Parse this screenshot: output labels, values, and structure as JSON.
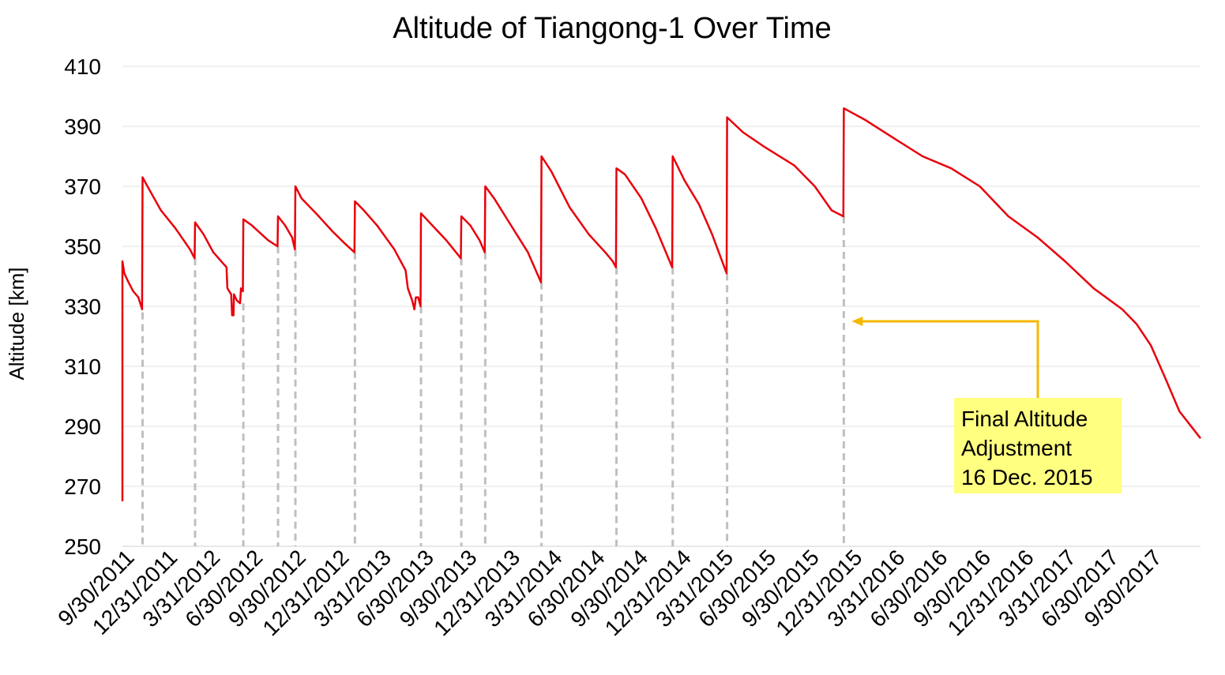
{
  "chart_data": {
    "type": "line",
    "title": "Altitude of Tiangong-1 Over Time",
    "xlabel": "",
    "ylabel": "Altitude [km]",
    "ylim": [
      250,
      410
    ],
    "yticks": [
      250,
      270,
      290,
      310,
      330,
      350,
      370,
      390,
      410
    ],
    "xlim": [
      "2011-09-29",
      "2018-01-15"
    ],
    "xtick_labels": [
      {
        "date": "2011-09-30",
        "label": "9/30/2011"
      },
      {
        "date": "2011-12-31",
        "label": "12/31/2011"
      },
      {
        "date": "2012-03-31",
        "label": "3/31/2012"
      },
      {
        "date": "2012-06-30",
        "label": "6/30/2012"
      },
      {
        "date": "2012-09-30",
        "label": "9/30/2012"
      },
      {
        "date": "2012-12-31",
        "label": "12/31/2012"
      },
      {
        "date": "2013-03-31",
        "label": "3/31/2013"
      },
      {
        "date": "2013-06-30",
        "label": "6/30/2013"
      },
      {
        "date": "2013-09-30",
        "label": "9/30/2013"
      },
      {
        "date": "2013-12-31",
        "label": "12/31/2013"
      },
      {
        "date": "2014-03-31",
        "label": "3/31/2014"
      },
      {
        "date": "2014-06-30",
        "label": "6/30/2014"
      },
      {
        "date": "2014-09-30",
        "label": "9/30/2014"
      },
      {
        "date": "2014-12-31",
        "label": "12/31/2014"
      },
      {
        "date": "2015-03-31",
        "label": "3/31/2015"
      },
      {
        "date": "2015-06-30",
        "label": "6/30/2015"
      },
      {
        "date": "2015-09-30",
        "label": "9/30/2015"
      },
      {
        "date": "2015-12-31",
        "label": "12/31/2015"
      },
      {
        "date": "2016-03-31",
        "label": "3/31/2016"
      },
      {
        "date": "2016-06-30",
        "label": "6/30/2016"
      },
      {
        "date": "2016-09-30",
        "label": "9/30/2016"
      },
      {
        "date": "2016-12-31",
        "label": "12/31/2016"
      },
      {
        "date": "2017-03-31",
        "label": "3/31/2017"
      },
      {
        "date": "2017-06-30",
        "label": "6/30/2017"
      },
      {
        "date": "2017-09-30",
        "label": "9/30/2017"
      }
    ],
    "grid": true,
    "legend": "none",
    "line_color": "#e8000b",
    "boost_line_color": "#bfbfbf",
    "series": [
      {
        "points": [
          [
            "2011-09-29",
            265
          ],
          [
            "2011-09-29",
            345
          ],
          [
            "2011-10-03",
            341
          ],
          [
            "2011-10-12",
            338
          ],
          [
            "2011-10-22",
            335
          ],
          [
            "2011-11-02",
            333
          ],
          [
            "2011-11-10",
            329
          ],
          [
            "2011-11-11",
            373
          ],
          [
            "2011-11-25",
            369
          ],
          [
            "2011-12-20",
            362
          ],
          [
            "2012-01-20",
            356
          ],
          [
            "2012-02-20",
            349
          ],
          [
            "2012-03-01",
            346
          ],
          [
            "2012-03-02",
            358
          ],
          [
            "2012-03-20",
            354
          ],
          [
            "2012-04-10",
            348
          ],
          [
            "2012-05-08",
            343
          ],
          [
            "2012-05-10",
            336
          ],
          [
            "2012-05-18",
            334
          ],
          [
            "2012-05-20",
            327
          ],
          [
            "2012-05-23",
            327
          ],
          [
            "2012-05-24",
            334
          ],
          [
            "2012-05-30",
            332
          ],
          [
            "2012-06-06",
            331
          ],
          [
            "2012-06-08",
            336
          ],
          [
            "2012-06-12",
            335
          ],
          [
            "2012-06-13",
            359
          ],
          [
            "2012-07-01",
            357
          ],
          [
            "2012-08-05",
            352
          ],
          [
            "2012-08-25",
            350
          ],
          [
            "2012-08-26",
            360
          ],
          [
            "2012-09-10",
            357
          ],
          [
            "2012-09-25",
            353
          ],
          [
            "2012-10-01",
            349
          ],
          [
            "2012-10-02",
            370
          ],
          [
            "2012-10-15",
            366
          ],
          [
            "2012-11-15",
            361
          ],
          [
            "2012-12-20",
            355
          ],
          [
            "2013-01-15",
            351
          ],
          [
            "2013-02-05",
            348
          ],
          [
            "2013-02-06",
            365
          ],
          [
            "2013-02-25",
            362
          ],
          [
            "2013-03-25",
            357
          ],
          [
            "2013-05-01",
            349
          ],
          [
            "2013-05-25",
            342
          ],
          [
            "2013-05-30",
            336
          ],
          [
            "2013-06-08",
            332
          ],
          [
            "2013-06-13",
            329
          ],
          [
            "2013-06-16",
            333
          ],
          [
            "2013-06-21",
            333
          ],
          [
            "2013-06-26",
            330
          ],
          [
            "2013-06-27",
            361
          ],
          [
            "2013-07-15",
            358
          ],
          [
            "2013-08-20",
            352
          ],
          [
            "2013-09-20",
            346
          ],
          [
            "2013-09-21",
            360
          ],
          [
            "2013-10-10",
            357
          ],
          [
            "2013-10-30",
            352
          ],
          [
            "2013-11-10",
            348
          ],
          [
            "2013-11-11",
            370
          ],
          [
            "2013-11-30",
            366
          ],
          [
            "2014-01-01",
            358
          ],
          [
            "2014-02-10",
            348
          ],
          [
            "2014-03-10",
            338
          ],
          [
            "2014-03-11",
            380
          ],
          [
            "2014-04-01",
            375
          ],
          [
            "2014-05-10",
            363
          ],
          [
            "2014-06-20",
            354
          ],
          [
            "2014-07-25",
            348
          ],
          [
            "2014-08-10",
            345
          ],
          [
            "2014-08-17",
            343
          ],
          [
            "2014-08-18",
            376
          ],
          [
            "2014-09-05",
            374
          ],
          [
            "2014-10-10",
            366
          ],
          [
            "2014-11-10",
            356
          ],
          [
            "2014-12-15",
            343
          ],
          [
            "2014-12-16",
            380
          ],
          [
            "2015-01-10",
            372
          ],
          [
            "2015-02-10",
            364
          ],
          [
            "2015-03-10",
            354
          ],
          [
            "2015-04-10",
            341
          ],
          [
            "2015-04-11",
            393
          ],
          [
            "2015-05-15",
            388
          ],
          [
            "2015-07-01",
            383
          ],
          [
            "2015-09-01",
            377
          ],
          [
            "2015-10-15",
            370
          ],
          [
            "2015-11-20",
            362
          ],
          [
            "2015-12-15",
            360
          ],
          [
            "2015-12-16",
            396
          ],
          [
            "2016-02-01",
            392
          ],
          [
            "2016-04-01",
            386
          ],
          [
            "2016-06-01",
            380
          ],
          [
            "2016-08-01",
            376
          ],
          [
            "2016-10-01",
            370
          ],
          [
            "2016-12-01",
            360
          ],
          [
            "2017-02-01",
            353
          ],
          [
            "2017-04-01",
            345
          ],
          [
            "2017-06-01",
            336
          ],
          [
            "2017-08-01",
            329
          ],
          [
            "2017-09-01",
            324
          ],
          [
            "2017-10-01",
            317
          ],
          [
            "2017-11-01",
            306
          ],
          [
            "2017-12-01",
            295
          ],
          [
            "2018-01-15",
            286
          ]
        ]
      }
    ],
    "boosts": [
      {
        "date": "2011-11-11",
        "altitude": 328
      },
      {
        "date": "2012-03-02",
        "altitude": 346
      },
      {
        "date": "2012-06-13",
        "altitude": 331
      },
      {
        "date": "2012-08-26",
        "altitude": 350
      },
      {
        "date": "2012-10-02",
        "altitude": 349
      },
      {
        "date": "2013-02-06",
        "altitude": 348
      },
      {
        "date": "2013-06-27",
        "altitude": 330
      },
      {
        "date": "2013-09-21",
        "altitude": 346
      },
      {
        "date": "2013-11-11",
        "altitude": 348
      },
      {
        "date": "2014-03-11",
        "altitude": 338
      },
      {
        "date": "2014-08-18",
        "altitude": 343
      },
      {
        "date": "2014-12-16",
        "altitude": 343
      },
      {
        "date": "2015-04-11",
        "altitude": 341
      },
      {
        "date": "2015-12-16",
        "altitude": 360
      }
    ],
    "annotation": {
      "lines": [
        "Final Altitude",
        "Adjustment",
        "16 Dec. 2015"
      ],
      "box_color": "#ffff80",
      "arrow_color": "#f5b800",
      "target_date": "2015-12-16",
      "target_altitude": 325
    }
  }
}
